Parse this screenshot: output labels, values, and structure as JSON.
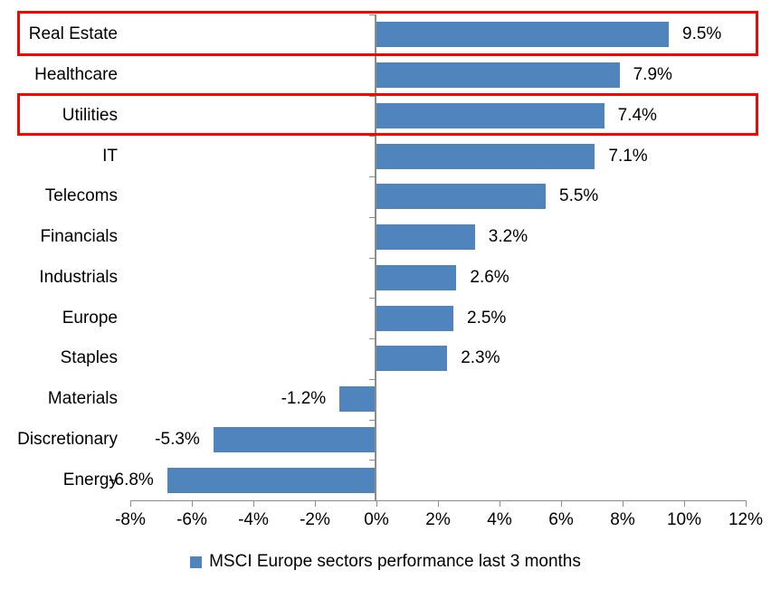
{
  "chart_data": {
    "type": "bar",
    "orientation": "horizontal",
    "title": "",
    "xlabel": "",
    "ylabel": "",
    "categories": [
      "Real Estate",
      "Healthcare",
      "Utilities",
      "IT",
      "Telecoms",
      "Financials",
      "Industrials",
      "Europe",
      "Staples",
      "Materials",
      "Discretionary",
      "Energy"
    ],
    "values": [
      9.5,
      7.9,
      7.4,
      7.1,
      5.5,
      3.2,
      2.6,
      2.5,
      2.3,
      -1.2,
      -5.3,
      -6.8
    ],
    "data_labels": [
      "9.5%",
      "7.9%",
      "7.4%",
      "7.1%",
      "5.5%",
      "3.2%",
      "2.6%",
      "2.5%",
      "2.3%",
      "-1.2%",
      "-5.3%",
      "-6.8%"
    ],
    "x_ticks": [
      "-8%",
      "-6%",
      "-4%",
      "-2%",
      "0%",
      "2%",
      "4%",
      "6%",
      "8%",
      "10%",
      "12%"
    ],
    "x_tick_values": [
      -8,
      -6,
      -4,
      -2,
      0,
      2,
      4,
      6,
      8,
      10,
      12
    ],
    "xlim": [
      -8,
      12
    ],
    "grid": false,
    "legend_position": "bottom",
    "bar_color": "#4f84bd",
    "axis_color": "#8c8c8c",
    "highlight_color": "#ff0000",
    "highlighted_categories": [
      "Real Estate",
      "Utilities"
    ]
  },
  "legend": {
    "label": "MSCI Europe sectors performance last 3 months",
    "marker_color": "#4f84bd"
  }
}
